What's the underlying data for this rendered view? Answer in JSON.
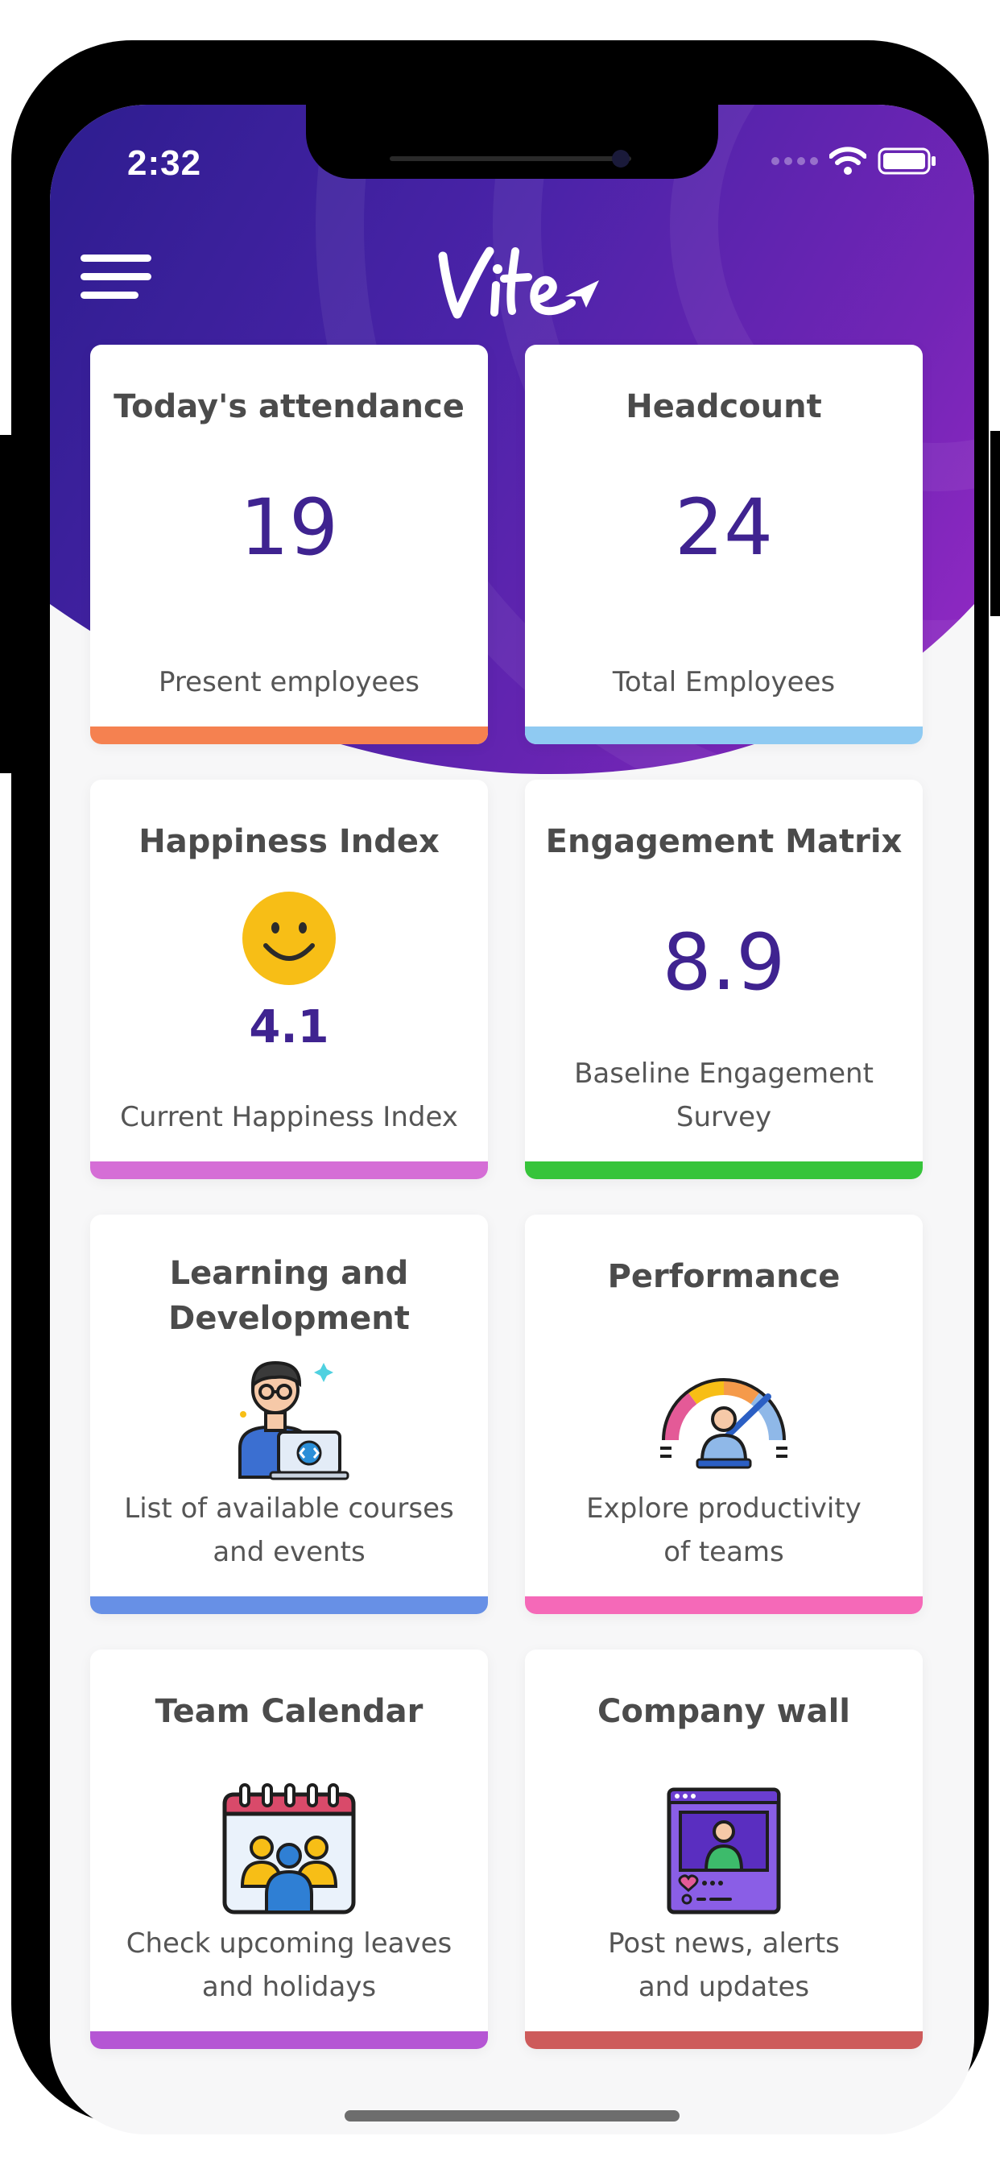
{
  "status_bar": {
    "time": "2:32",
    "icons": [
      "signal-dots-icon",
      "wifi-icon",
      "battery-icon"
    ]
  },
  "header": {
    "menu_icon": "hamburger-menu-icon",
    "logo_text": "Vite"
  },
  "colors": {
    "brand_purple": "#3f2390",
    "hero_gradient": [
      "#2d1d8f",
      "#9c2ac8"
    ]
  },
  "cards": [
    {
      "title": "Today's attendance",
      "value": "19",
      "subtitle": "Present employees",
      "bar_color": "#f58150"
    },
    {
      "title": "Headcount",
      "value": "24",
      "subtitle": "Total Employees",
      "bar_color": "#8fcaf2"
    },
    {
      "title": "Happiness Index",
      "value": "4.1",
      "subtitle": "Current Happiness Index",
      "bar_color": "#d56ed6",
      "icon": "smiley-face-icon"
    },
    {
      "title": "Engagement Matrix",
      "value": "8.9",
      "subtitle_line1": "Baseline Engagement",
      "subtitle_line2": "Survey",
      "bar_color": "#36c43a"
    },
    {
      "title_line1": "Learning and",
      "title_line2": "Development",
      "subtitle_line1": "List of available courses",
      "subtitle_line2": "and events",
      "bar_color": "#6790e6",
      "icon": "developer-laptop-icon"
    },
    {
      "title": "Performance",
      "subtitle_line1": "Explore productivity",
      "subtitle_line2": "of teams",
      "bar_color": "#f569b8",
      "icon": "performance-gauge-icon"
    },
    {
      "title": "Team Calendar",
      "subtitle_line1": "Check upcoming leaves",
      "subtitle_line2": "and holidays",
      "bar_color": "#b556d4",
      "icon": "team-calendar-icon"
    },
    {
      "title": "Company wall",
      "subtitle_line1": "Post news, alerts",
      "subtitle_line2": "and updates",
      "bar_color": "#cd5b5b",
      "icon": "company-wall-icon"
    }
  ]
}
